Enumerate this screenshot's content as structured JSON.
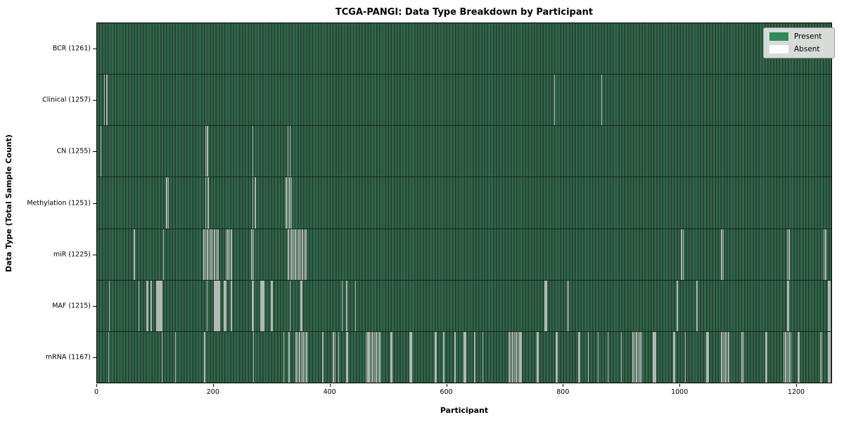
{
  "chart_data": {
    "type": "heatmap",
    "title": "TCGA-PANGI: Data Type Breakdown by Participant",
    "xlabel": "Participant",
    "ylabel": "Data Type (Total Sample Count)",
    "x_ticks": [
      0,
      200,
      400,
      600,
      800,
      1000,
      1200
    ],
    "x_max": 1261.5,
    "n_participants": 1261,
    "grid": false,
    "legend_position": "upper right",
    "legend": [
      {
        "label": "Present",
        "color": "#2e8b57"
      },
      {
        "label": "Absent",
        "color": "#ffffff"
      }
    ],
    "colors": {
      "present_stripe_light": "#31664a",
      "present_stripe_dark": "#223e2e",
      "absent_line": "#b2b8b2",
      "row_separator": "#14261c"
    },
    "rows": [
      {
        "label": "BCR",
        "total": 1261,
        "absent": []
      },
      {
        "label": "Clinical",
        "total": 1257,
        "absent": [
          12,
          16,
          785,
          866
        ]
      },
      {
        "label": "CN",
        "total": 1255,
        "absent": [
          6,
          186,
          189,
          267,
          327,
          331
        ]
      },
      {
        "label": "Methylation",
        "total": 1251,
        "absent": [
          119,
          122,
          186,
          190,
          267,
          271,
          324,
          327,
          330,
          333
        ]
      },
      {
        "label": "miR",
        "total": 1225,
        "absent": [
          63,
          113,
          183,
          186,
          189,
          192,
          195,
          198,
          201,
          204,
          207,
          221,
          224,
          227,
          230,
          265,
          268,
          328,
          331,
          334,
          337,
          340,
          343,
          346,
          349,
          352,
          355,
          358,
          1003,
          1006,
          1072,
          1075,
          1185,
          1188,
          1248,
          1251
        ]
      },
      {
        "label": "MAF",
        "total": 1215,
        "absent": [
          20,
          71,
          84,
          86,
          92,
          102,
          104,
          105,
          106,
          108,
          110,
          188,
          200,
          202,
          203,
          204,
          206,
          208,
          210,
          218,
          220,
          230,
          266,
          268,
          280,
          282,
          284,
          286,
          298,
          300,
          331,
          349,
          351,
          420,
          428,
          443,
          769,
          771,
          807,
          809,
          996,
          1030,
          1185,
          1187,
          1256,
          1258
        ]
      },
      {
        "label": "mRNA",
        "total": 1167,
        "absent": [
          19,
          111,
          134,
          184,
          268,
          320,
          329,
          341,
          344,
          347,
          350,
          353,
          356,
          359,
          387,
          405,
          408,
          414,
          428,
          430,
          461,
          464,
          467,
          470,
          473,
          476,
          479,
          482,
          485,
          504,
          506,
          537,
          539,
          580,
          582,
          595,
          614,
          629,
          631,
          633,
          648,
          662,
          707,
          710,
          713,
          716,
          719,
          722,
          725,
          728,
          755,
          757,
          788,
          790,
          826,
          828,
          843,
          860,
          877,
          900,
          920,
          923,
          926,
          929,
          932,
          935,
          955,
          957,
          959,
          990,
          992,
          1010,
          1047,
          1049,
          1072,
          1075,
          1078,
          1081,
          1084,
          1107,
          1110,
          1148,
          1150,
          1179,
          1182,
          1185,
          1188,
          1191,
          1203,
          1205,
          1242,
          1244,
          1256,
          1258
        ]
      }
    ]
  }
}
